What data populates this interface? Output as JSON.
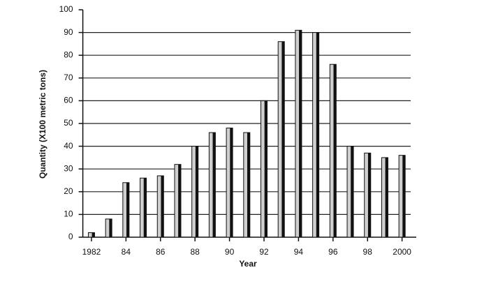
{
  "chart_data": {
    "type": "bar",
    "x_label": "Year",
    "y_label": "Quantity (X100 metric tons)",
    "categories": [
      "1982",
      null,
      "84",
      null,
      "86",
      null,
      "88",
      null,
      "90",
      null,
      "92",
      null,
      "94",
      null,
      "96",
      null,
      "98",
      null,
      "2000"
    ],
    "values": [
      2,
      8,
      24,
      26,
      27,
      32,
      40,
      46,
      48,
      46,
      60,
      86,
      91,
      90,
      76,
      40,
      37,
      35,
      36
    ],
    "color": "#cfcfcf",
    "ylim": [
      0,
      100
    ],
    "yticks": [
      0,
      10,
      20,
      30,
      40,
      50,
      60,
      70,
      80,
      90,
      100
    ],
    "grid": true
  }
}
